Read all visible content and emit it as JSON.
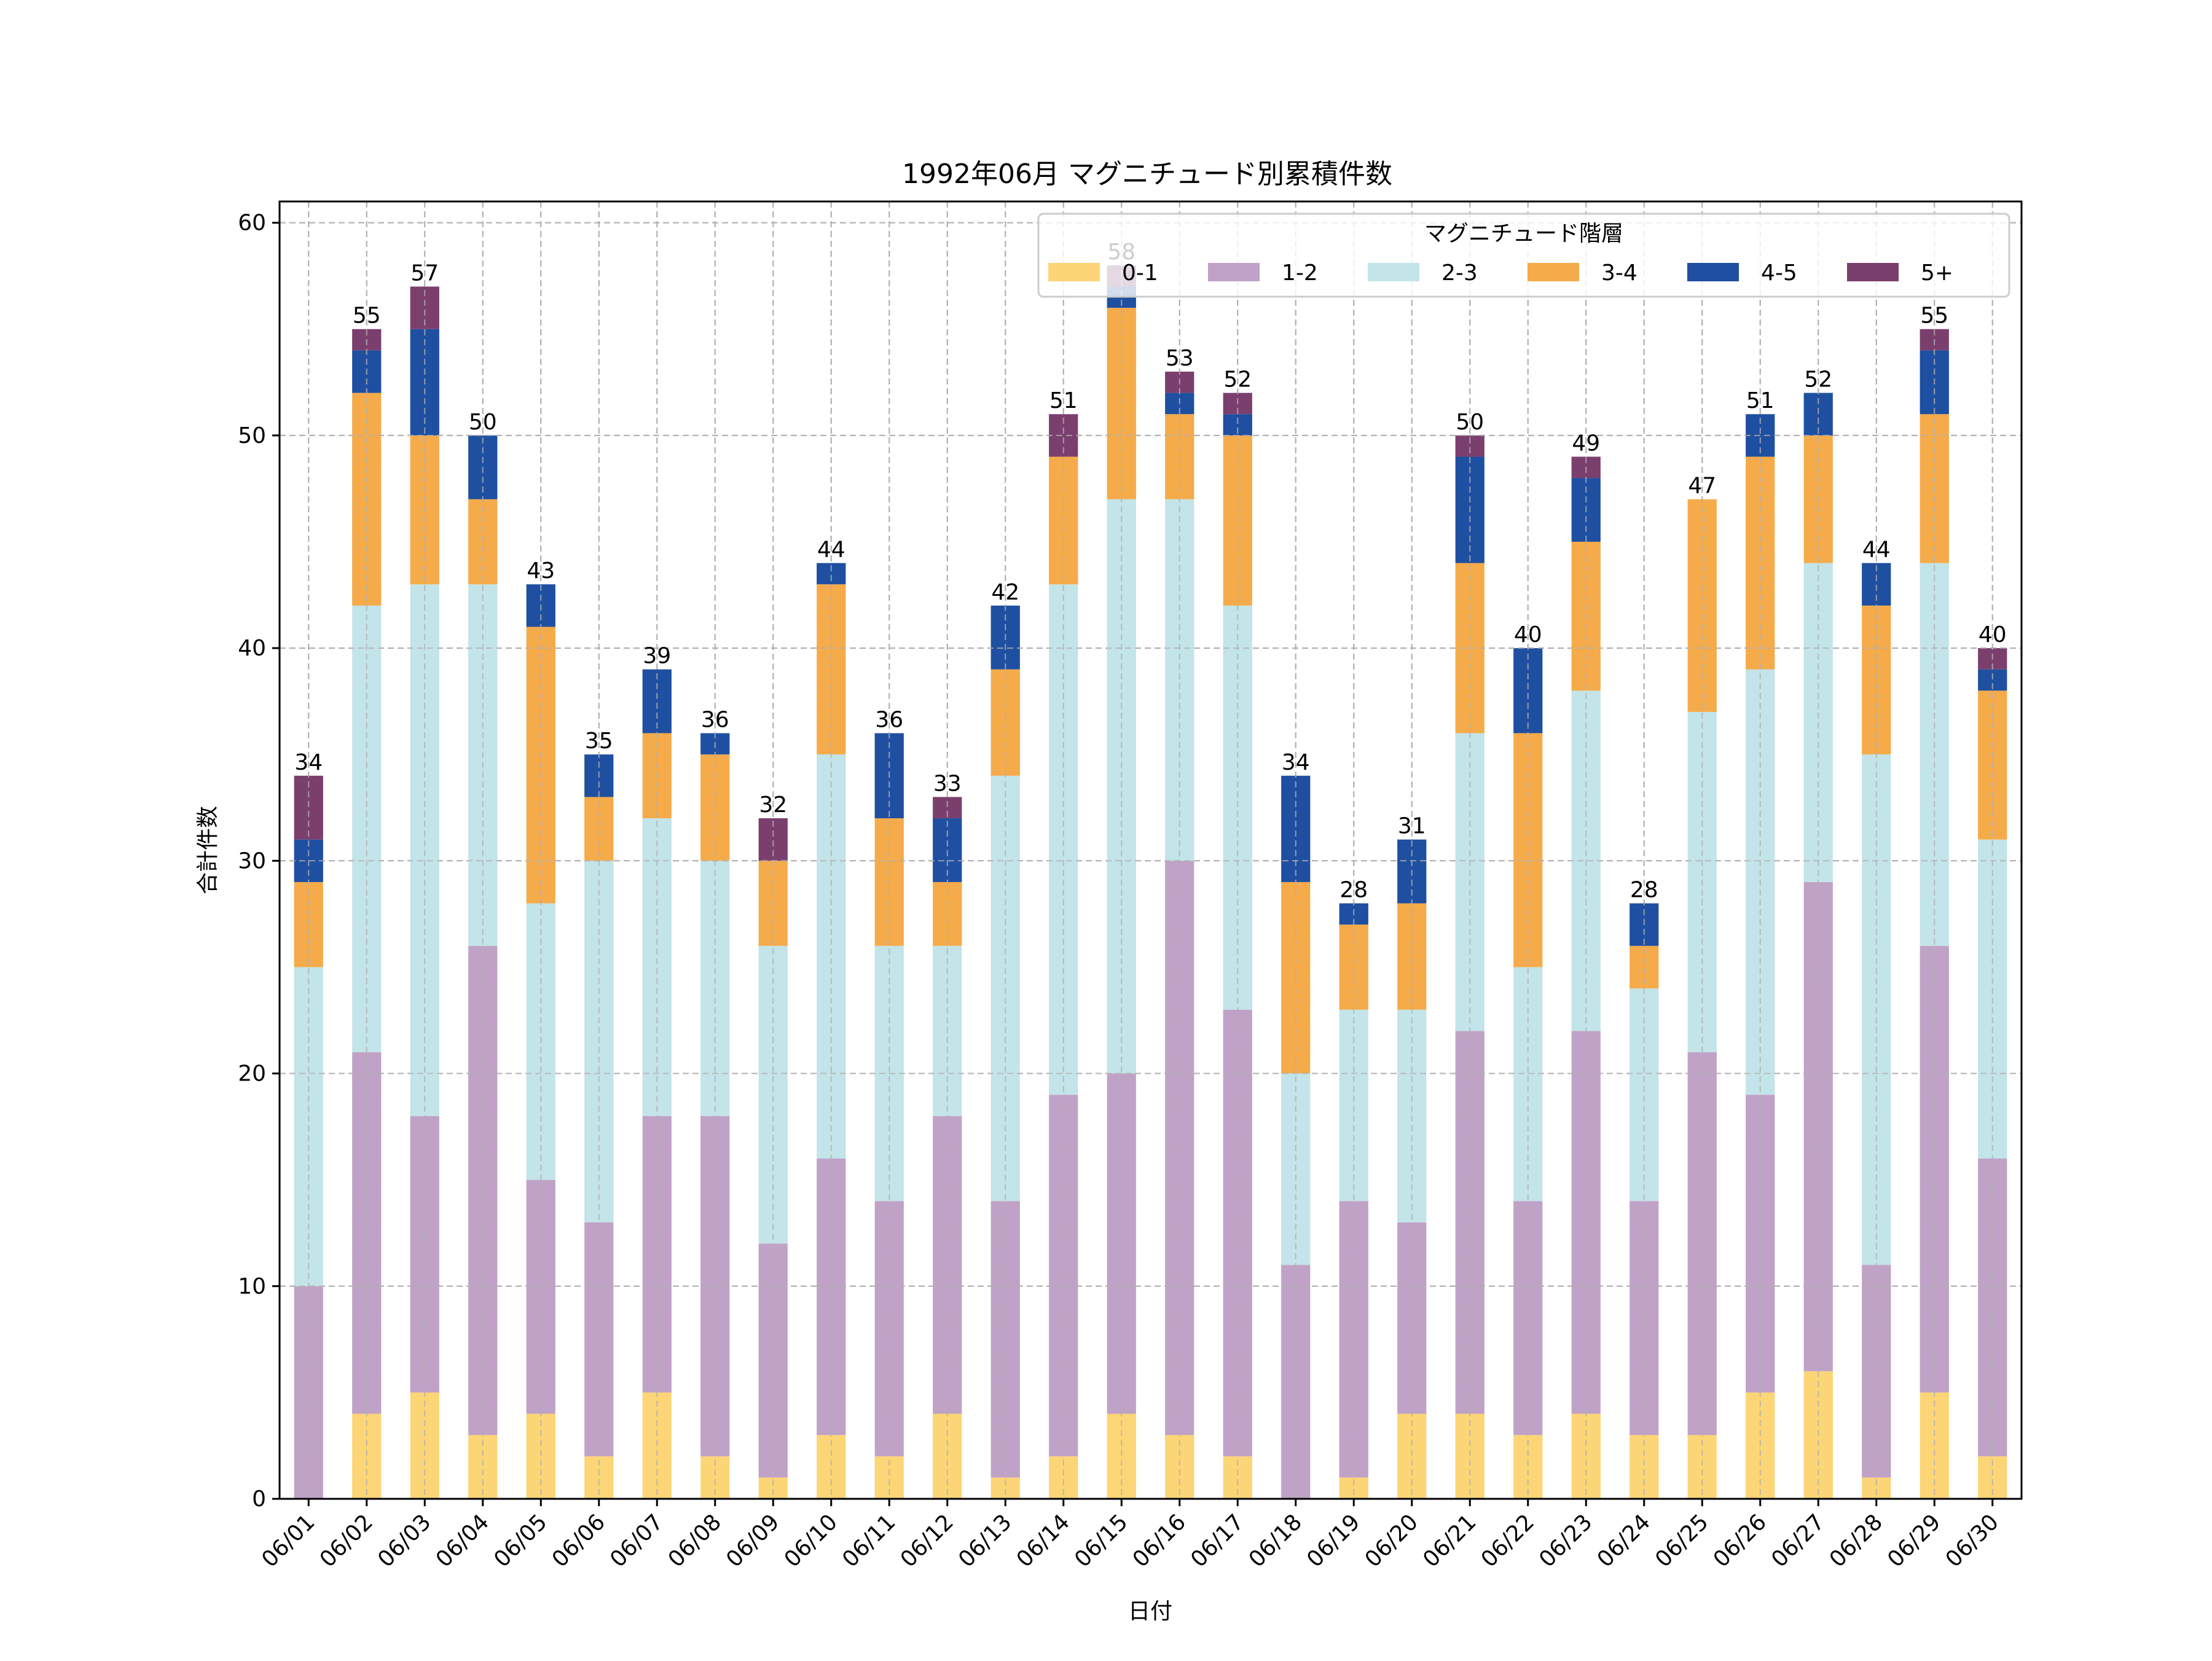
{
  "chart_data": {
    "type": "bar",
    "stacked": true,
    "title": "1992年06月 マグニチュード別累積件数",
    "xlabel": "日付",
    "ylabel": "合計件数",
    "ylim": [
      0,
      61
    ],
    "yticks": [
      0,
      10,
      20,
      30,
      40,
      50,
      60
    ],
    "grid": true,
    "legend": {
      "title": "マグニチュード階層",
      "placement": "top-right",
      "columns": 6
    },
    "categories": [
      "06/01",
      "06/02",
      "06/03",
      "06/04",
      "06/05",
      "06/06",
      "06/07",
      "06/08",
      "06/09",
      "06/10",
      "06/11",
      "06/12",
      "06/13",
      "06/14",
      "06/15",
      "06/16",
      "06/17",
      "06/18",
      "06/19",
      "06/20",
      "06/21",
      "06/22",
      "06/23",
      "06/24",
      "06/25",
      "06/26",
      "06/27",
      "06/28",
      "06/29",
      "06/30"
    ],
    "series": [
      {
        "name": "0-1",
        "color": "#fcd576",
        "values": [
          0,
          4,
          5,
          3,
          4,
          2,
          5,
          2,
          1,
          3,
          2,
          4,
          1,
          2,
          4,
          3,
          2,
          0,
          1,
          4,
          4,
          3,
          4,
          3,
          3,
          5,
          6,
          1,
          5,
          2
        ]
      },
      {
        "name": "1-2",
        "color": "#c0a2c7",
        "values": [
          10,
          17,
          13,
          23,
          11,
          11,
          13,
          16,
          11,
          13,
          12,
          14,
          13,
          17,
          16,
          27,
          21,
          11,
          13,
          9,
          18,
          11,
          18,
          11,
          18,
          14,
          23,
          10,
          21,
          14
        ]
      },
      {
        "name": "2-3",
        "color": "#c3e4e8",
        "values": [
          15,
          21,
          25,
          17,
          13,
          17,
          14,
          12,
          14,
          19,
          12,
          8,
          20,
          24,
          27,
          17,
          19,
          9,
          9,
          10,
          14,
          11,
          16,
          10,
          16,
          20,
          15,
          24,
          18,
          15
        ]
      },
      {
        "name": "3-4",
        "color": "#f5ab4a",
        "values": [
          4,
          10,
          7,
          4,
          13,
          3,
          4,
          5,
          4,
          8,
          6,
          3,
          5,
          6,
          9,
          4,
          8,
          9,
          4,
          5,
          8,
          11,
          7,
          2,
          10,
          10,
          6,
          7,
          7,
          7
        ]
      },
      {
        "name": "4-5",
        "color": "#1f4fa0",
        "values": [
          2,
          2,
          5,
          3,
          2,
          2,
          3,
          1,
          0,
          1,
          4,
          3,
          3,
          0,
          1,
          1,
          1,
          5,
          1,
          3,
          5,
          4,
          3,
          2,
          0,
          2,
          2,
          2,
          3,
          1
        ]
      },
      {
        "name": "5+",
        "color": "#7b3f6e",
        "values": [
          3,
          1,
          2,
          0,
          0,
          0,
          0,
          0,
          2,
          0,
          0,
          1,
          0,
          2,
          1,
          1,
          1,
          0,
          0,
          0,
          1,
          0,
          1,
          0,
          0,
          0,
          0,
          0,
          1,
          1
        ]
      }
    ],
    "totals": [
      34,
      55,
      57,
      50,
      43,
      35,
      39,
      36,
      32,
      44,
      36,
      33,
      42,
      51,
      58,
      53,
      52,
      34,
      28,
      31,
      50,
      40,
      49,
      28,
      47,
      51,
      52,
      44,
      55,
      40
    ]
  }
}
